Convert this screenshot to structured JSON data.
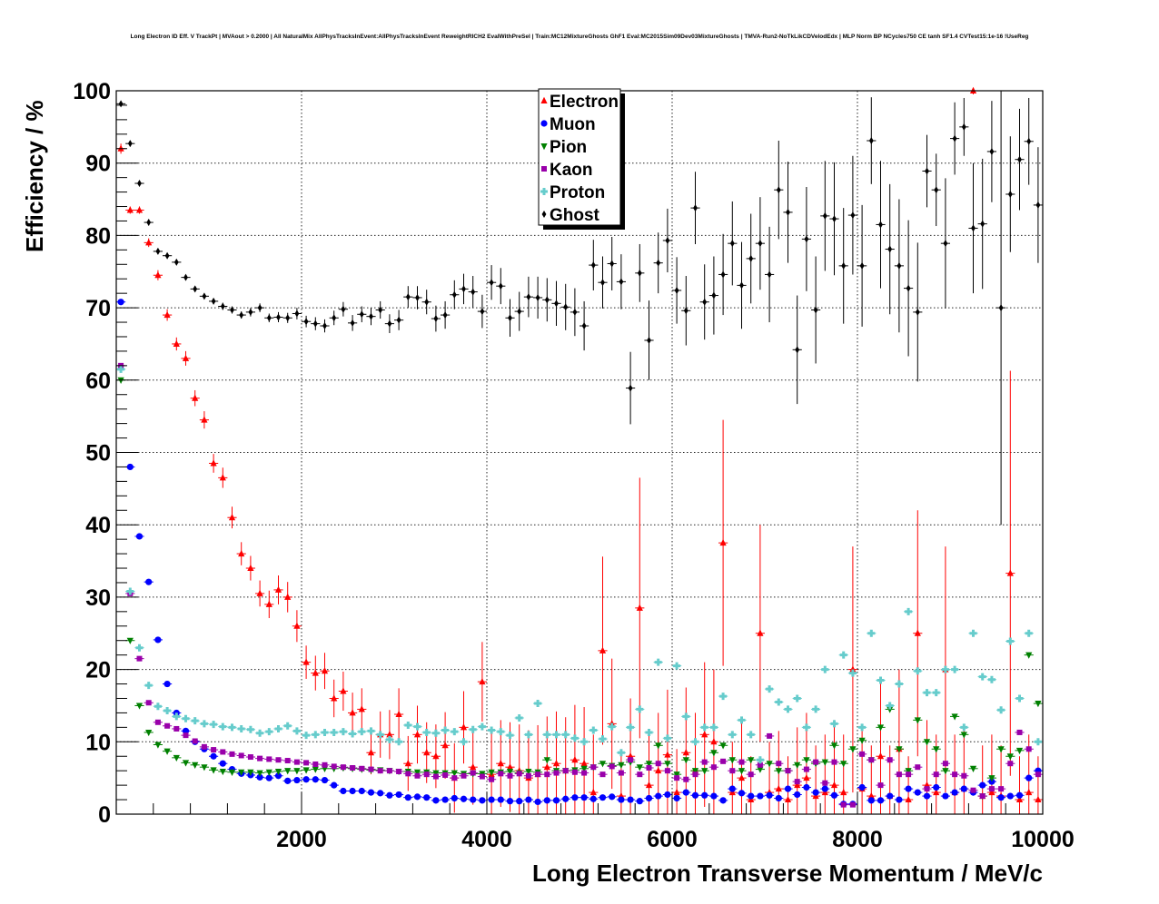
{
  "chart_data": {
    "type": "scatter",
    "title": "Long Electron ID Eff. V TrackPt | MVAout > 0.2000 | All NaturalMix AllPhysTracksInEvent:AllPhysTracksInEvent ReweightRICH2 EvalWithPreSel | Train:MC12MixtureGhosts GhF1 Eval:MC2015Sim09Dev03MixtureGhosts | TMVA-Run2-NoTkLikCDVelodEdx | MLP Norm BP NCycles750 CE tanh SF1.4 CVTest15:1e-16 !UseReg",
    "xlabel": "Long Electron Transverse Momentum / MeV/c",
    "ylabel": "Efficiency / %",
    "xlim": [
      0,
      10000
    ],
    "ylim": [
      0,
      100
    ],
    "xticks": [
      2000,
      4000,
      6000,
      8000,
      10000
    ],
    "yticks": [
      0,
      10,
      20,
      30,
      40,
      50,
      60,
      70,
      80,
      90,
      100
    ],
    "xtick_labels": [
      "2000",
      "4000",
      "6000",
      "8000",
      "10000"
    ],
    "ytick_labels": [
      "0",
      "10",
      "20",
      "30",
      "40",
      "50",
      "60",
      "70",
      "80",
      "90",
      "100"
    ],
    "grid": true,
    "legend_position": "top-center",
    "x": [
      50,
      150,
      250,
      350,
      450,
      550,
      650,
      750,
      850,
      950,
      1050,
      1150,
      1250,
      1350,
      1450,
      1550,
      1650,
      1750,
      1850,
      1950,
      2050,
      2150,
      2250,
      2350,
      2450,
      2550,
      2650,
      2750,
      2850,
      2950,
      3050,
      3150,
      3250,
      3350,
      3450,
      3550,
      3650,
      3750,
      3850,
      3950,
      4050,
      4150,
      4250,
      4350,
      4450,
      4550,
      4650,
      4750,
      4850,
      4950,
      5050,
      5150,
      5250,
      5350,
      5450,
      5550,
      5650,
      5750,
      5850,
      5950,
      6050,
      6150,
      6250,
      6350,
      6450,
      6550,
      6650,
      6750,
      6850,
      6950,
      7050,
      7150,
      7250,
      7350,
      7450,
      7550,
      7650,
      7750,
      7850,
      7950,
      8050,
      8150,
      8250,
      8350,
      8450,
      8550,
      8650,
      8750,
      8850,
      8950,
      9050,
      9150,
      9250,
      9350,
      9450,
      9550,
      9650,
      9750,
      9850,
      9950
    ],
    "series": [
      {
        "name": "Electron",
        "marker": "triangle-up",
        "color": "#ff0000",
        "values": [
          92,
          83.5,
          83.5,
          79,
          74.5,
          69,
          65,
          63,
          57.5,
          54.5,
          48.5,
          46.5,
          41,
          36,
          34,
          30.5,
          29,
          31,
          30,
          26,
          21,
          19.5,
          19.8,
          16,
          17,
          14,
          14.5,
          8.5,
          11,
          11,
          13.8,
          7,
          11,
          8.5,
          8,
          9.5,
          5,
          12,
          6.5,
          18.3,
          5.5,
          7,
          6.5,
          6,
          5,
          5.5,
          6.5,
          7,
          6,
          7.5,
          7,
          3,
          22.6,
          12.5,
          2.5,
          8,
          28.5,
          4,
          6,
          8.2,
          3,
          8.5,
          6,
          11,
          10,
          37.5,
          3,
          5,
          2,
          25,
          3,
          3.5,
          2,
          4,
          5,
          2.5,
          3,
          4,
          3,
          20,
          3.5,
          2.5,
          8,
          2.5,
          9,
          2,
          25,
          4,
          3,
          20,
          3,
          3.5,
          100,
          2.5,
          3,
          2.5,
          33.3,
          2,
          3,
          2
        ],
        "errors": [
          0.7,
          0.5,
          0.5,
          0.6,
          0.7,
          0.8,
          0.9,
          1.0,
          1.1,
          1.2,
          1.3,
          1.4,
          1.5,
          1.6,
          1.7,
          1.8,
          1.9,
          2.0,
          2.1,
          2.2,
          2.3,
          2.4,
          2.5,
          2.6,
          2.7,
          2.8,
          2.9,
          3.0,
          3.2,
          3.4,
          3.6,
          3.8,
          4.0,
          4.2,
          4.4,
          4.6,
          4.8,
          5.0,
          5.2,
          5.5,
          5.8,
          6.0,
          6.2,
          6.4,
          6.6,
          6.8,
          7.0,
          7.2,
          7.4,
          7.6,
          7.8,
          8.0,
          13,
          9,
          6,
          8,
          18,
          7,
          8,
          9,
          6,
          9,
          8,
          10,
          10,
          17,
          7,
          8,
          6,
          15,
          7,
          8,
          6,
          8,
          9,
          7,
          8,
          9,
          8,
          17,
          8,
          7,
          10,
          7,
          11,
          6,
          17,
          9,
          8,
          17,
          8,
          8,
          0.5,
          7,
          8,
          7,
          28,
          6,
          8,
          6
        ]
      },
      {
        "name": "Muon",
        "marker": "circle",
        "color": "#0000ff",
        "values": [
          70.8,
          48,
          38.4,
          32.1,
          24.1,
          18,
          14,
          11.5,
          10,
          9,
          8,
          7,
          6.2,
          5.6,
          5.4,
          5.1,
          5,
          5.3,
          4.6,
          4.7,
          4.8,
          4.8,
          4.7,
          4,
          3.2,
          3.2,
          3.2,
          3,
          2.9,
          2.6,
          2.7,
          2.3,
          2.4,
          2.3,
          1.9,
          2,
          2.2,
          2.1,
          2,
          1.9,
          2,
          2,
          1.8,
          1.8,
          2,
          1.7,
          1.9,
          1.9,
          2.1,
          2.3,
          2.3,
          2.1,
          2.3,
          2.4,
          2,
          2,
          1.8,
          2.2,
          2.5,
          2.7,
          2.2,
          3,
          2.6,
          2.6,
          2.5,
          1.9,
          3.5,
          2.9,
          2.5,
          2.5,
          2.6,
          2.2,
          3.5,
          2.7,
          3.7,
          3,
          3.5,
          2.6,
          1.4,
          1.4,
          3.7,
          1.9,
          1.9,
          2.5,
          2,
          3.5,
          3,
          2.5,
          3.7,
          2.5,
          3,
          3.5,
          3,
          4,
          4.5,
          2.3,
          2.5,
          2.6,
          5,
          6
        ]
      },
      {
        "name": "Pion",
        "marker": "triangle-down",
        "color": "#008000",
        "values": [
          60,
          24,
          15,
          11.3,
          9.6,
          8.7,
          7.8,
          7.1,
          6.8,
          6.5,
          6.1,
          5.9,
          5.8,
          5.8,
          5.8,
          5.7,
          5.8,
          5.9,
          6,
          6,
          6.1,
          6.2,
          6.3,
          6.3,
          6.4,
          6.3,
          6.2,
          6.1,
          6.1,
          6,
          5.9,
          5.9,
          5.8,
          5.8,
          5.7,
          5.7,
          5.7,
          5.6,
          5.6,
          5.6,
          5.8,
          5.8,
          5.9,
          5.7,
          5.9,
          5.8,
          7.5,
          6,
          6,
          6.1,
          6.3,
          6.5,
          7,
          6.7,
          6.8,
          7.2,
          6.5,
          7,
          9.5,
          7,
          5.5,
          7.5,
          6,
          6,
          8.5,
          9.5,
          7.5,
          6,
          7.5,
          6.2,
          7,
          6,
          6,
          6.8,
          7.5,
          7,
          7.2,
          9.5,
          7,
          9,
          10.2,
          7.5,
          12,
          14.5,
          9,
          6,
          13,
          10,
          9,
          6,
          13.5,
          11,
          6.3,
          2.5,
          5,
          9,
          8,
          8.8,
          22,
          15.3
        ]
      },
      {
        "name": "Kaon",
        "marker": "square",
        "color": "#9900aa",
        "values": [
          62,
          30.5,
          21.5,
          15.4,
          12.7,
          12.2,
          11.8,
          10.9,
          10.1,
          9.3,
          8.9,
          8.6,
          8.3,
          8.1,
          7.9,
          7.7,
          7.6,
          7.5,
          7.4,
          7.2,
          7.1,
          6.9,
          6.8,
          6.6,
          6.5,
          6.4,
          6.3,
          6.2,
          6,
          6,
          5.9,
          5.6,
          5.3,
          5.5,
          5.2,
          5.4,
          5,
          5.3,
          5.7,
          5.2,
          4.8,
          5.6,
          5.3,
          5.6,
          5.3,
          5.5,
          5.5,
          5.7,
          6,
          5.8,
          5.7,
          6.5,
          5.5,
          6.6,
          5.7,
          7.5,
          5.5,
          6.4,
          7,
          6,
          5,
          4.8,
          5.5,
          7.2,
          6.5,
          7.3,
          6,
          7.2,
          5.5,
          6.8,
          10.8,
          7,
          6,
          4.5,
          6.2,
          7.2,
          4.3,
          7.2,
          1.3,
          1.3,
          8.3,
          7.5,
          4,
          7.5,
          5.5,
          5.5,
          6.5,
          3.5,
          5.5,
          7,
          5.5,
          5.3,
          3.3,
          2.5,
          3.5,
          3.5,
          7,
          11.3,
          9,
          5.5
        ]
      },
      {
        "name": "Proton",
        "marker": "cross",
        "color": "#66cccc",
        "values": [
          61.5,
          30.8,
          23,
          17.8,
          14.9,
          14.3,
          13.5,
          13.2,
          12.9,
          12.5,
          12.4,
          12.1,
          12,
          11.8,
          11.7,
          11.2,
          11.4,
          11.8,
          12.2,
          11.5,
          10.9,
          11,
          11.3,
          11.3,
          11.4,
          11.1,
          11.4,
          11.5,
          11,
          10.3,
          10,
          12.3,
          12.1,
          11.3,
          11.2,
          11.6,
          11.4,
          10,
          11.7,
          12.1,
          11.6,
          11.4,
          10.9,
          13.3,
          11,
          15.3,
          11,
          11,
          11,
          10.5,
          10,
          11.6,
          10.4,
          12.1,
          8.5,
          12,
          14.5,
          11.3,
          21,
          10.5,
          20.5,
          13.5,
          10,
          12,
          12,
          16.3,
          11,
          13,
          11,
          7.5,
          17.3,
          15.5,
          14.5,
          16,
          12,
          14.5,
          20,
          12.5,
          22,
          19.5,
          12,
          25,
          18.5,
          15,
          18,
          28,
          19.8,
          16.8,
          16.8,
          20,
          20,
          12,
          25,
          19,
          18.6,
          14.4,
          23.9,
          16,
          25,
          10
        ]
      },
      {
        "name": "Ghost",
        "marker": "diamond",
        "color": "#000000",
        "values": [
          98.2,
          92.7,
          87.2,
          81.8,
          77.8,
          77.2,
          76.3,
          74.2,
          72.6,
          71.6,
          70.9,
          70.2,
          69.7,
          69,
          69.4,
          70,
          68.6,
          68.7,
          68.6,
          69.2,
          68.1,
          67.8,
          67.5,
          68.6,
          69.8,
          67.9,
          69.1,
          68.8,
          69.7,
          67.8,
          68.3,
          71.5,
          71.4,
          70.8,
          68.5,
          69,
          71.8,
          72.6,
          72.2,
          69.5,
          73.5,
          73,
          68.6,
          69.5,
          71.5,
          71.4,
          71.1,
          70.6,
          70.1,
          69.4,
          67.5,
          75.9,
          73.5,
          76.1,
          73.6,
          58.9,
          74.8,
          65.5,
          76.2,
          79.3,
          72.4,
          69.6,
          83.8,
          70.8,
          71.7,
          74.6,
          78.9,
          73.1,
          76.8,
          78.9,
          74.6,
          86.3,
          83.2,
          64.2,
          79.5,
          69.7,
          82.7,
          82.3,
          75.8,
          82.8,
          75.8,
          93.1,
          81.5,
          78.1,
          75.8,
          72.7,
          69.4,
          88.9,
          86.3,
          78.9,
          93.4,
          95,
          81,
          81.6,
          91.6,
          70,
          85.7,
          90.5,
          93,
          84.2
        ],
        "errors": [
          0.3,
          0.4,
          0.4,
          0.4,
          0.4,
          0.4,
          0.4,
          0.4,
          0.4,
          0.4,
          0.4,
          0.5,
          0.5,
          0.5,
          0.6,
          0.6,
          0.6,
          0.7,
          0.7,
          0.8,
          0.8,
          0.9,
          0.9,
          1.0,
          1.0,
          1.1,
          1.1,
          1.2,
          1.2,
          1.3,
          1.4,
          1.5,
          1.6,
          1.7,
          1.8,
          1.9,
          2.0,
          2.1,
          2.2,
          2.3,
          2.4,
          2.5,
          2.6,
          2.7,
          2.8,
          2.9,
          3.0,
          3.1,
          3.2,
          3.3,
          3.4,
          3.5,
          3.6,
          3.7,
          3.8,
          5.0,
          4.0,
          5.5,
          4.2,
          4.4,
          4.6,
          4.8,
          5.0,
          5.2,
          5.4,
          5.6,
          5.8,
          6.0,
          6.2,
          6.4,
          6.6,
          6.8,
          7.0,
          7.5,
          7.2,
          7.4,
          7.6,
          7.8,
          8.0,
          8.2,
          8.4,
          6,
          8.8,
          9.0,
          9.2,
          9.4,
          9.6,
          5,
          5,
          9,
          5,
          4,
          9,
          9,
          7,
          30,
          8,
          7,
          6,
          8
        ]
      }
    ]
  }
}
